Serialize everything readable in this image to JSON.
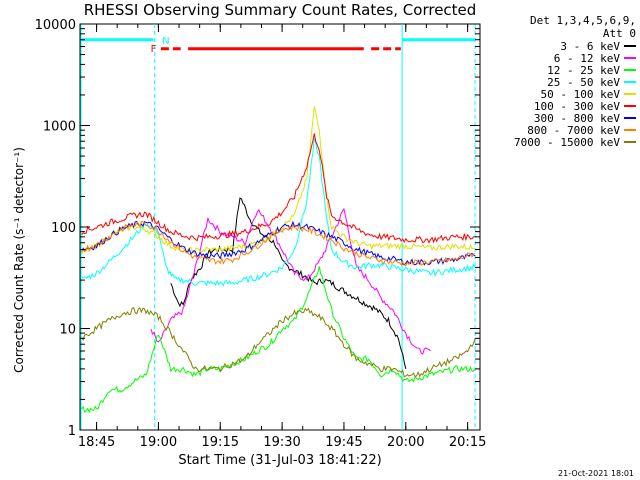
{
  "chart_data": {
    "type": "line",
    "title": "RHESSI Observing Summary Count Rates, Corrected",
    "xlabel": "Start Time (31-Jul-03 18:41:22)",
    "ylabel": "Corrected Count Rate (s⁻¹ detector⁻¹)",
    "y_scale": "log",
    "ylim": [
      1,
      10000
    ],
    "x_range_minutes": [
      18.683,
      20.3
    ],
    "x_ticks": [
      {
        "t": 18.75,
        "label": "18:45"
      },
      {
        "t": 19.0,
        "label": "19:00"
      },
      {
        "t": 19.25,
        "label": "19:15"
      },
      {
        "t": 19.5,
        "label": "19:30"
      },
      {
        "t": 19.75,
        "label": "19:45"
      },
      {
        "t": 20.0,
        "label": "20:00"
      },
      {
        "t": 20.25,
        "label": "20:15"
      }
    ],
    "y_ticks": [
      {
        "v": 1,
        "label": "1"
      },
      {
        "v": 10,
        "label": "10"
      },
      {
        "v": 100,
        "label": "100"
      },
      {
        "v": 1000,
        "label": "1000"
      },
      {
        "v": 10000,
        "label": "10000"
      }
    ],
    "legend_header": [
      "Det 1,3,4,5,6,9,",
      "Att 0"
    ],
    "series": [
      {
        "name": "3 - 6 keV",
        "color": "#000000",
        "x": [
          19.05,
          19.08,
          19.1,
          19.13,
          19.17,
          19.2,
          19.23,
          19.27,
          19.3,
          19.33,
          19.37,
          19.4,
          19.43,
          19.47,
          19.5,
          19.53,
          19.57,
          19.6,
          19.63,
          19.67,
          19.7,
          19.73,
          19.77,
          19.8,
          19.83,
          19.87,
          19.9,
          19.93,
          19.97,
          20.0
        ],
        "y": [
          28,
          18,
          17,
          30,
          40,
          55,
          60,
          60,
          60,
          200,
          120,
          95,
          80,
          70,
          45,
          40,
          35,
          32,
          28,
          30,
          28,
          25,
          22,
          20,
          18,
          16,
          14,
          12,
          8,
          4
        ]
      },
      {
        "name": "6 - 12 keV",
        "color": "#ff00ff",
        "x": [
          18.97,
          19.0,
          19.05,
          19.1,
          19.15,
          19.2,
          19.25,
          19.3,
          19.35,
          19.4,
          19.45,
          19.5,
          19.55,
          19.6,
          19.65,
          19.7,
          19.75,
          19.8,
          19.85,
          19.9,
          19.95,
          20.0,
          20.05,
          20.1
        ],
        "y": [
          10,
          7,
          12,
          15,
          40,
          120,
          90,
          80,
          70,
          150,
          100,
          60,
          35,
          30,
          45,
          80,
          150,
          40,
          30,
          20,
          15,
          9,
          6,
          6
        ]
      },
      {
        "name": "12 - 25 keV",
        "color": "#00ff00",
        "x": [
          18.69,
          18.75,
          18.8,
          18.85,
          18.9,
          18.95,
          19.0,
          19.05,
          19.1,
          19.15,
          19.2,
          19.25,
          19.3,
          19.35,
          19.4,
          19.45,
          19.5,
          19.55,
          19.6,
          19.65,
          19.7,
          19.75,
          19.8,
          19.85,
          19.9,
          19.95,
          20.0,
          20.1,
          20.2,
          20.28
        ],
        "y": [
          1.6,
          1.6,
          2.5,
          2.5,
          3,
          3.5,
          9,
          4,
          4,
          3.5,
          4,
          4,
          4.5,
          5,
          6,
          7,
          10,
          12,
          20,
          40,
          15,
          8,
          5,
          5,
          3.5,
          4,
          3,
          3.5,
          4,
          4
        ]
      },
      {
        "name": "25 - 50 keV",
        "color": "#00ffff",
        "x": [
          18.69,
          18.75,
          18.8,
          18.85,
          18.9,
          18.95,
          19.0,
          19.03,
          19.07,
          19.1,
          19.15,
          19.2,
          19.25,
          19.3,
          19.35,
          19.4,
          19.45,
          19.5,
          19.55,
          19.6,
          19.63,
          19.65,
          19.68,
          19.7,
          19.75,
          19.8,
          19.85,
          19.9,
          19.95,
          20.0,
          20.1,
          20.2,
          20.28
        ],
        "y": [
          30,
          35,
          45,
          60,
          80,
          110,
          90,
          40,
          30,
          30,
          28,
          28,
          28,
          28,
          30,
          32,
          35,
          40,
          60,
          180,
          700,
          500,
          120,
          60,
          45,
          40,
          42,
          42,
          40,
          38,
          35,
          38,
          40
        ]
      },
      {
        "name": "50 - 100 keV",
        "color": "#e0e000",
        "x": [
          18.69,
          18.75,
          18.8,
          18.85,
          18.9,
          18.95,
          19.0,
          19.05,
          19.1,
          19.15,
          19.2,
          19.25,
          19.3,
          19.35,
          19.4,
          19.45,
          19.5,
          19.55,
          19.6,
          19.63,
          19.65,
          19.68,
          19.7,
          19.75,
          19.8,
          19.85,
          19.9,
          19.95,
          20.0,
          20.1,
          20.2,
          20.28
        ],
        "y": [
          55,
          65,
          80,
          95,
          100,
          95,
          80,
          65,
          60,
          58,
          60,
          60,
          62,
          65,
          70,
          80,
          100,
          130,
          300,
          1500,
          900,
          200,
          100,
          80,
          70,
          65,
          65,
          65,
          65,
          62,
          65,
          62
        ]
      },
      {
        "name": "100 - 300 keV",
        "color": "#ff0000",
        "x": [
          18.69,
          18.75,
          18.8,
          18.85,
          18.9,
          18.95,
          19.0,
          19.05,
          19.1,
          19.15,
          19.2,
          19.25,
          19.3,
          19.35,
          19.4,
          19.45,
          19.5,
          19.55,
          19.6,
          19.63,
          19.65,
          19.68,
          19.7,
          19.75,
          19.8,
          19.85,
          19.9,
          19.95,
          20.0,
          20.1,
          20.2,
          20.28
        ],
        "y": [
          90,
          100,
          110,
          120,
          130,
          135,
          110,
          90,
          82,
          78,
          80,
          82,
          85,
          90,
          100,
          110,
          140,
          200,
          400,
          800,
          600,
          200,
          130,
          110,
          95,
          85,
          80,
          78,
          75,
          75,
          80,
          80
        ]
      },
      {
        "name": "300 - 800 keV",
        "color": "#0000ff",
        "x": [
          18.69,
          18.75,
          18.8,
          18.85,
          18.9,
          18.95,
          19.0,
          19.05,
          19.1,
          19.15,
          19.2,
          19.25,
          19.3,
          19.35,
          19.4,
          19.45,
          19.5,
          19.55,
          19.6,
          19.65,
          19.7,
          19.75,
          19.8,
          19.85,
          19.9,
          19.95,
          20.0,
          20.1,
          20.2,
          20.28
        ],
        "y": [
          60,
          65,
          80,
          95,
          105,
          110,
          95,
          75,
          62,
          55,
          52,
          52,
          55,
          60,
          70,
          85,
          100,
          105,
          100,
          90,
          80,
          70,
          60,
          55,
          50,
          48,
          45,
          45,
          48,
          52
        ]
      },
      {
        "name": "800 - 7000 keV",
        "color": "#ff8000",
        "x": [
          18.69,
          18.75,
          18.8,
          18.85,
          18.9,
          18.95,
          19.0,
          19.05,
          19.1,
          19.15,
          19.2,
          19.25,
          19.3,
          19.35,
          19.4,
          19.45,
          19.5,
          19.55,
          19.6,
          19.65,
          19.7,
          19.75,
          19.8,
          19.85,
          19.9,
          19.95,
          20.0,
          20.1,
          20.2,
          20.28
        ],
        "y": [
          60,
          66,
          80,
          95,
          105,
          108,
          92,
          72,
          58,
          50,
          47,
          46,
          48,
          55,
          65,
          80,
          95,
          100,
          95,
          85,
          75,
          62,
          55,
          50,
          47,
          45,
          44,
          45,
          48,
          55
        ]
      },
      {
        "name": "7000 - 15000 keV",
        "color": "#808000",
        "x": [
          18.69,
          18.75,
          18.8,
          18.85,
          18.9,
          18.95,
          19.0,
          19.05,
          19.1,
          19.15,
          19.2,
          19.25,
          19.3,
          19.35,
          19.4,
          19.45,
          19.5,
          19.55,
          19.6,
          19.65,
          19.7,
          19.75,
          19.8,
          19.85,
          19.9,
          19.95,
          20.0,
          20.05,
          20.1,
          20.15,
          20.2,
          20.25,
          20.28
        ],
        "y": [
          8,
          10,
          12,
          14,
          15,
          15,
          13,
          9,
          6,
          4,
          4,
          4,
          4.5,
          5,
          7,
          9,
          12,
          14,
          15,
          13,
          10,
          7,
          5,
          4.5,
          4,
          4,
          3.5,
          3.5,
          4,
          4.5,
          5,
          6,
          8
        ]
      }
    ],
    "state_markers": [
      {
        "label": "F",
        "t": 18.98,
        "color": "#ff0000"
      },
      {
        "label": "N",
        "t": 19.03,
        "color": "#00ffff"
      }
    ],
    "legend_placement": "right",
    "grid": false
  },
  "footer_date": "21-Oct-2021 18:01"
}
